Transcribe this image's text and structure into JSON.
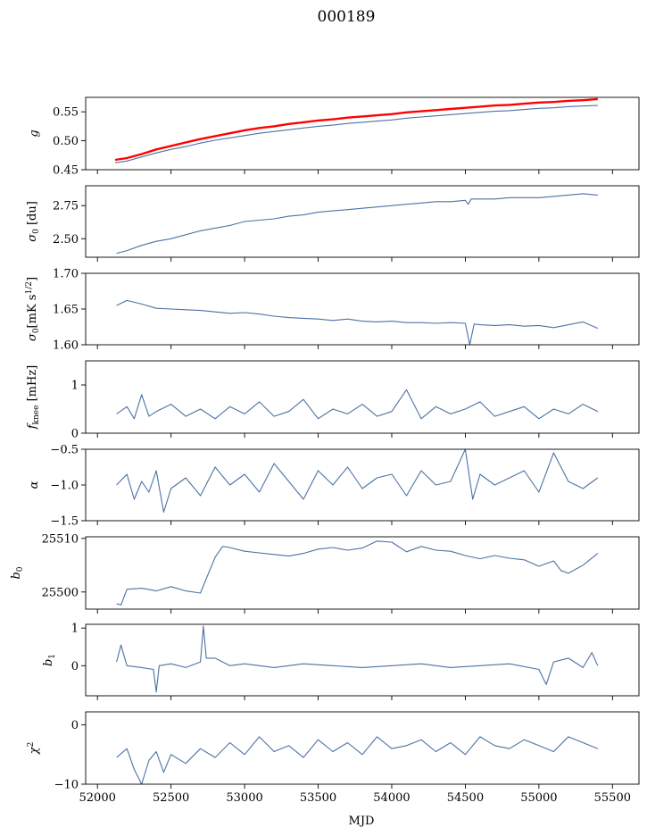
{
  "figure": {
    "title": "000189",
    "xlabel": "MJD"
  },
  "colors": {
    "series": "#4c72a4",
    "reference": "#ff0000",
    "frame": "#000000"
  },
  "x_axis": {
    "range": [
      51920,
      55680
    ],
    "ticks": [
      52000,
      52500,
      53000,
      53500,
      54000,
      54500,
      55000,
      55500
    ]
  },
  "chart_data": [
    {
      "type": "line",
      "ylabel": "g",
      "xlim": [
        51920,
        55680
      ],
      "ylim": [
        0.45,
        0.575
      ],
      "yticks": [
        0.45,
        0.5,
        0.55
      ],
      "ytick_labels": [
        "0.45",
        "0.50",
        "0.55"
      ],
      "x": [
        52120,
        52200,
        52300,
        52400,
        52500,
        52600,
        52700,
        52800,
        52900,
        53000,
        53100,
        53200,
        53300,
        53400,
        53500,
        53600,
        53700,
        53800,
        53900,
        54000,
        54100,
        54200,
        54300,
        54400,
        54500,
        54600,
        54700,
        54800,
        54900,
        55000,
        55100,
        55200,
        55300,
        55400
      ],
      "series": [
        {
          "style": "reference",
          "values": [
            0.467,
            0.47,
            0.477,
            0.485,
            0.491,
            0.497,
            0.503,
            0.508,
            0.513,
            0.518,
            0.522,
            0.525,
            0.529,
            0.532,
            0.535,
            0.537,
            0.54,
            0.542,
            0.544,
            0.546,
            0.549,
            0.551,
            0.553,
            0.555,
            0.557,
            0.559,
            0.561,
            0.562,
            0.564,
            0.566,
            0.567,
            0.569,
            0.57,
            0.572
          ]
        },
        {
          "style": "series",
          "values": [
            0.462,
            0.465,
            0.472,
            0.479,
            0.485,
            0.49,
            0.496,
            0.501,
            0.505,
            0.509,
            0.513,
            0.516,
            0.519,
            0.522,
            0.525,
            0.527,
            0.53,
            0.532,
            0.534,
            0.536,
            0.539,
            0.541,
            0.543,
            0.545,
            0.547,
            0.549,
            0.551,
            0.552,
            0.554,
            0.556,
            0.557,
            0.559,
            0.56,
            0.561
          ]
        }
      ]
    },
    {
      "type": "line",
      "ylabel": "σ0 [du]",
      "xlim": [
        51920,
        55680
      ],
      "ylim": [
        2.36,
        2.9
      ],
      "yticks": [
        2.5,
        2.75
      ],
      "ytick_labels": [
        "2.50",
        "2.75"
      ],
      "x": [
        52130,
        52200,
        52300,
        52400,
        52500,
        52600,
        52700,
        52800,
        52900,
        53000,
        53100,
        53200,
        53300,
        53400,
        53500,
        53600,
        53700,
        53800,
        53900,
        54000,
        54100,
        54200,
        54300,
        54400,
        54500,
        54520,
        54540,
        54600,
        54700,
        54800,
        54900,
        55000,
        55100,
        55200,
        55300,
        55400
      ],
      "series": [
        {
          "style": "series",
          "values": [
            2.39,
            2.41,
            2.45,
            2.48,
            2.5,
            2.53,
            2.56,
            2.58,
            2.6,
            2.63,
            2.64,
            2.65,
            2.67,
            2.68,
            2.7,
            2.71,
            2.72,
            2.73,
            2.74,
            2.75,
            2.76,
            2.77,
            2.78,
            2.78,
            2.79,
            2.76,
            2.8,
            2.8,
            2.8,
            2.81,
            2.81,
            2.81,
            2.82,
            2.83,
            2.84,
            2.83
          ]
        }
      ]
    },
    {
      "type": "line",
      "ylabel": "σ0[mK s^1/2]",
      "xlim": [
        51920,
        55680
      ],
      "ylim": [
        1.6,
        1.7
      ],
      "yticks": [
        1.6,
        1.65,
        1.7
      ],
      "ytick_labels": [
        "1.60",
        "1.65",
        "1.70"
      ],
      "x": [
        52130,
        52200,
        52300,
        52400,
        52500,
        52600,
        52700,
        52800,
        52900,
        53000,
        53100,
        53200,
        53300,
        53400,
        53500,
        53600,
        53700,
        53800,
        53900,
        54000,
        54100,
        54200,
        54300,
        54400,
        54500,
        54530,
        54560,
        54600,
        54700,
        54800,
        54900,
        55000,
        55100,
        55200,
        55300,
        55400
      ],
      "series": [
        {
          "style": "series",
          "values": [
            1.655,
            1.662,
            1.657,
            1.651,
            1.65,
            1.649,
            1.648,
            1.646,
            1.644,
            1.645,
            1.643,
            1.64,
            1.638,
            1.637,
            1.636,
            1.634,
            1.636,
            1.633,
            1.632,
            1.633,
            1.631,
            1.631,
            1.63,
            1.631,
            1.63,
            1.6,
            1.629,
            1.628,
            1.627,
            1.628,
            1.626,
            1.627,
            1.624,
            1.628,
            1.632,
            1.623
          ]
        }
      ]
    },
    {
      "type": "line",
      "ylabel": "f_knee [mHz]",
      "xlim": [
        51920,
        55680
      ],
      "ylim": [
        0,
        1.5
      ],
      "yticks": [
        0,
        1
      ],
      "ytick_labels": [
        "0",
        "1"
      ],
      "x": [
        52130,
        52200,
        52250,
        52300,
        52350,
        52400,
        52500,
        52600,
        52700,
        52800,
        52900,
        53000,
        53100,
        53200,
        53300,
        53400,
        53500,
        53600,
        53700,
        53800,
        53900,
        54000,
        54100,
        54200,
        54300,
        54400,
        54500,
        54600,
        54700,
        54800,
        54900,
        55000,
        55100,
        55200,
        55300,
        55400
      ],
      "series": [
        {
          "style": "series",
          "values": [
            0.4,
            0.55,
            0.3,
            0.8,
            0.35,
            0.45,
            0.6,
            0.35,
            0.5,
            0.3,
            0.55,
            0.4,
            0.65,
            0.35,
            0.45,
            0.7,
            0.3,
            0.5,
            0.4,
            0.6,
            0.35,
            0.45,
            0.9,
            0.3,
            0.55,
            0.4,
            0.5,
            0.65,
            0.35,
            0.45,
            0.55,
            0.3,
            0.5,
            0.4,
            0.6,
            0.45
          ]
        }
      ]
    },
    {
      "type": "line",
      "ylabel": "α",
      "xlim": [
        51920,
        55680
      ],
      "ylim": [
        -1.5,
        -0.5
      ],
      "yticks": [
        -1.5,
        -1.0,
        -0.5
      ],
      "ytick_labels": [
        "−1.5",
        "−1.0",
        "−0.5"
      ],
      "x": [
        52130,
        52200,
        52250,
        52300,
        52350,
        52400,
        52450,
        52500,
        52600,
        52700,
        52800,
        52900,
        53000,
        53100,
        53200,
        53300,
        53400,
        53500,
        53600,
        53700,
        53800,
        53900,
        54000,
        54100,
        54200,
        54300,
        54400,
        54500,
        54550,
        54600,
        54700,
        54800,
        54900,
        55000,
        55100,
        55200,
        55300,
        55400
      ],
      "series": [
        {
          "style": "series",
          "values": [
            -1.0,
            -0.85,
            -1.2,
            -0.95,
            -1.1,
            -0.8,
            -1.38,
            -1.05,
            -0.9,
            -1.15,
            -0.75,
            -1.0,
            -0.85,
            -1.1,
            -0.7,
            -0.95,
            -1.2,
            -0.8,
            -1.0,
            -0.75,
            -1.05,
            -0.9,
            -0.85,
            -1.15,
            -0.8,
            -1.0,
            -0.95,
            -0.5,
            -1.2,
            -0.85,
            -1.0,
            -0.9,
            -0.8,
            -1.1,
            -0.55,
            -0.95,
            -1.05,
            -0.9
          ]
        }
      ]
    },
    {
      "type": "line",
      "ylabel": "b0",
      "xlim": [
        51920,
        55680
      ],
      "ylim": [
        25496.8,
        25510.3
      ],
      "yticks": [
        25500,
        25510
      ],
      "ytick_labels": [
        "25500",
        "25510"
      ],
      "x": [
        52130,
        52160,
        52200,
        52300,
        52400,
        52500,
        52600,
        52700,
        52740,
        52800,
        52850,
        52900,
        53000,
        53100,
        53200,
        53300,
        53400,
        53500,
        53600,
        53700,
        53800,
        53900,
        54000,
        54100,
        54200,
        54300,
        54400,
        54500,
        54600,
        54700,
        54800,
        54900,
        55000,
        55100,
        55150,
        55200,
        55300,
        55400
      ],
      "series": [
        {
          "style": "series",
          "values": [
            25497.8,
            25497.6,
            25500.5,
            25500.7,
            25500.2,
            25501.0,
            25500.2,
            25499.8,
            25502.5,
            25506.5,
            25508.5,
            25508.3,
            25507.6,
            25507.3,
            25507.0,
            25506.7,
            25507.2,
            25508.0,
            25508.3,
            25507.8,
            25508.2,
            25509.5,
            25509.3,
            25507.5,
            25508.5,
            25507.8,
            25507.6,
            25506.8,
            25506.2,
            25506.8,
            25506.3,
            25506.0,
            25504.8,
            25505.8,
            25504.0,
            25503.5,
            25505.0,
            25507.2
          ]
        }
      ]
    },
    {
      "type": "line",
      "ylabel": "b1",
      "xlim": [
        51920,
        55680
      ],
      "ylim": [
        -0.8,
        1.1
      ],
      "yticks": [
        0,
        1
      ],
      "ytick_labels": [
        "0",
        "1"
      ],
      "x": [
        52130,
        52160,
        52200,
        52300,
        52380,
        52400,
        52420,
        52500,
        52600,
        52700,
        52720,
        52740,
        52800,
        52900,
        53000,
        53200,
        53400,
        53600,
        53800,
        54000,
        54200,
        54400,
        54600,
        54800,
        55000,
        55050,
        55100,
        55200,
        55300,
        55360,
        55400
      ],
      "series": [
        {
          "style": "series",
          "values": [
            0.1,
            0.55,
            0.0,
            -0.05,
            -0.1,
            -0.7,
            0.0,
            0.05,
            -0.05,
            0.1,
            1.05,
            0.2,
            0.2,
            0.0,
            0.05,
            -0.05,
            0.05,
            0.0,
            -0.05,
            0.0,
            0.05,
            -0.05,
            0.0,
            0.05,
            -0.1,
            -0.5,
            0.1,
            0.2,
            -0.05,
            0.35,
            0.0
          ]
        }
      ]
    },
    {
      "type": "line",
      "ylabel": "χ²",
      "xlim": [
        51920,
        55680
      ],
      "ylim": [
        -10,
        2.2
      ],
      "yticks": [
        -10,
        0
      ],
      "ytick_labels": [
        "−10",
        "0"
      ],
      "x": [
        52130,
        52200,
        52250,
        52300,
        52350,
        52400,
        52450,
        52500,
        52600,
        52700,
        52800,
        52900,
        53000,
        53100,
        53200,
        53300,
        53400,
        53500,
        53600,
        53700,
        53800,
        53900,
        54000,
        54100,
        54200,
        54300,
        54400,
        54500,
        54600,
        54700,
        54800,
        54900,
        55000,
        55100,
        55200,
        55300,
        55400
      ],
      "series": [
        {
          "style": "series",
          "values": [
            -5.5,
            -4.0,
            -7.5,
            -10.0,
            -6.0,
            -4.5,
            -8.0,
            -5.0,
            -6.5,
            -4.0,
            -5.5,
            -3.0,
            -5.0,
            -2.0,
            -4.5,
            -3.5,
            -5.5,
            -2.5,
            -4.5,
            -3.0,
            -5.0,
            -2.0,
            -4.0,
            -3.5,
            -2.5,
            -4.5,
            -3.0,
            -5.0,
            -2.0,
            -3.5,
            -4.0,
            -2.5,
            -3.5,
            -4.5,
            -2.0,
            -3.0,
            -4.0
          ]
        }
      ]
    }
  ]
}
